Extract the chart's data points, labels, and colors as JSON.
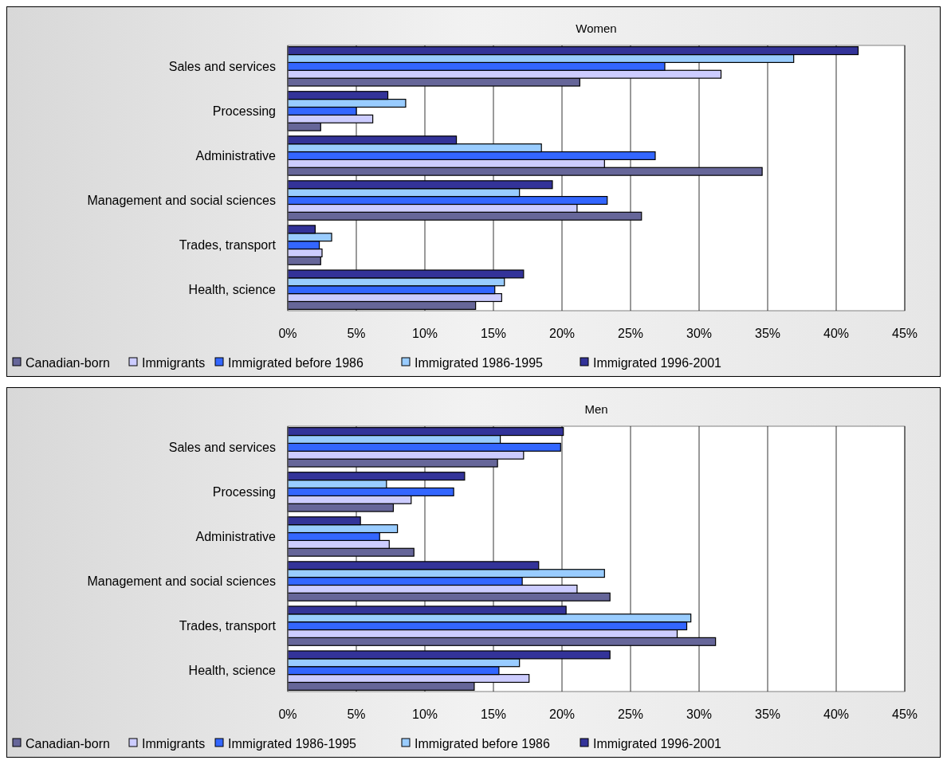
{
  "chart_data": [
    {
      "type": "bar",
      "orientation": "horizontal",
      "title": "Women",
      "categories": [
        "Sales and services",
        "Processing",
        "Administrative",
        "Management and social sciences",
        "Trades, transport",
        "Health, science"
      ],
      "xlim": [
        0,
        45
      ],
      "xticks": [
        {
          "value": 0,
          "label": "0%"
        },
        {
          "value": 5,
          "label": "5%"
        },
        {
          "value": 10,
          "label": "10%"
        },
        {
          "value": 15,
          "label": "15%"
        },
        {
          "value": 20,
          "label": "20%"
        },
        {
          "value": 25,
          "label": "25%"
        },
        {
          "value": 30,
          "label": "30%"
        },
        {
          "value": 35,
          "label": "35%"
        },
        {
          "value": 40,
          "label": "40%"
        },
        {
          "value": 45,
          "label": "45%"
        }
      ],
      "grid": "x",
      "legend": "bottom",
      "series": [
        {
          "name": "Canadian-born",
          "color": "#666699",
          "values": [
            21.3,
            2.4,
            34.6,
            25.8,
            2.4,
            13.7
          ]
        },
        {
          "name": "Immigrants",
          "color": "#ccccff",
          "values": [
            31.6,
            6.2,
            23.1,
            21.1,
            2.5,
            15.6
          ]
        },
        {
          "name": "Immigrated before 1986",
          "color": "#3366ff",
          "values": [
            27.5,
            5.0,
            26.8,
            23.3,
            2.3,
            15.1
          ]
        },
        {
          "name": "Immigrated 1986-1995",
          "color": "#99ccff",
          "values": [
            36.9,
            8.6,
            18.5,
            16.9,
            3.2,
            15.8
          ]
        },
        {
          "name": "Immigrated 1996-2001",
          "color": "#333399",
          "values": [
            41.6,
            7.3,
            12.3,
            19.3,
            2.0,
            17.2
          ]
        }
      ]
    },
    {
      "type": "bar",
      "orientation": "horizontal",
      "title": "Men",
      "categories": [
        "Sales and services",
        "Processing",
        "Administrative",
        "Management and social sciences",
        "Trades, transport",
        "Health, science"
      ],
      "xlim": [
        0,
        45
      ],
      "xticks": [
        {
          "value": 0,
          "label": "0%"
        },
        {
          "value": 5,
          "label": "5%"
        },
        {
          "value": 10,
          "label": "10%"
        },
        {
          "value": 15,
          "label": "15%"
        },
        {
          "value": 20,
          "label": "20%"
        },
        {
          "value": 25,
          "label": "25%"
        },
        {
          "value": 30,
          "label": "30%"
        },
        {
          "value": 35,
          "label": "35%"
        },
        {
          "value": 40,
          "label": "40%"
        },
        {
          "value": 45,
          "label": "45%"
        }
      ],
      "grid": "x",
      "legend": "bottom",
      "series": [
        {
          "name": "Canadian-born",
          "color": "#666699",
          "values": [
            15.3,
            7.7,
            9.2,
            23.5,
            31.2,
            13.6
          ]
        },
        {
          "name": "Immigrants",
          "color": "#ccccff",
          "values": [
            17.2,
            9.0,
            7.4,
            21.1,
            28.4,
            17.6
          ]
        },
        {
          "name": "Immigrated 1986-1995",
          "color": "#3366ff",
          "values": [
            19.9,
            12.1,
            6.7,
            17.1,
            29.1,
            15.4
          ]
        },
        {
          "name": "Immigrated before 1986",
          "color": "#99ccff",
          "values": [
            15.5,
            7.2,
            8.0,
            23.1,
            29.4,
            16.9
          ]
        },
        {
          "name": "Immigrated 1996-2001",
          "color": "#333399",
          "values": [
            20.1,
            12.9,
            5.3,
            18.3,
            20.3,
            23.5
          ]
        }
      ]
    }
  ]
}
